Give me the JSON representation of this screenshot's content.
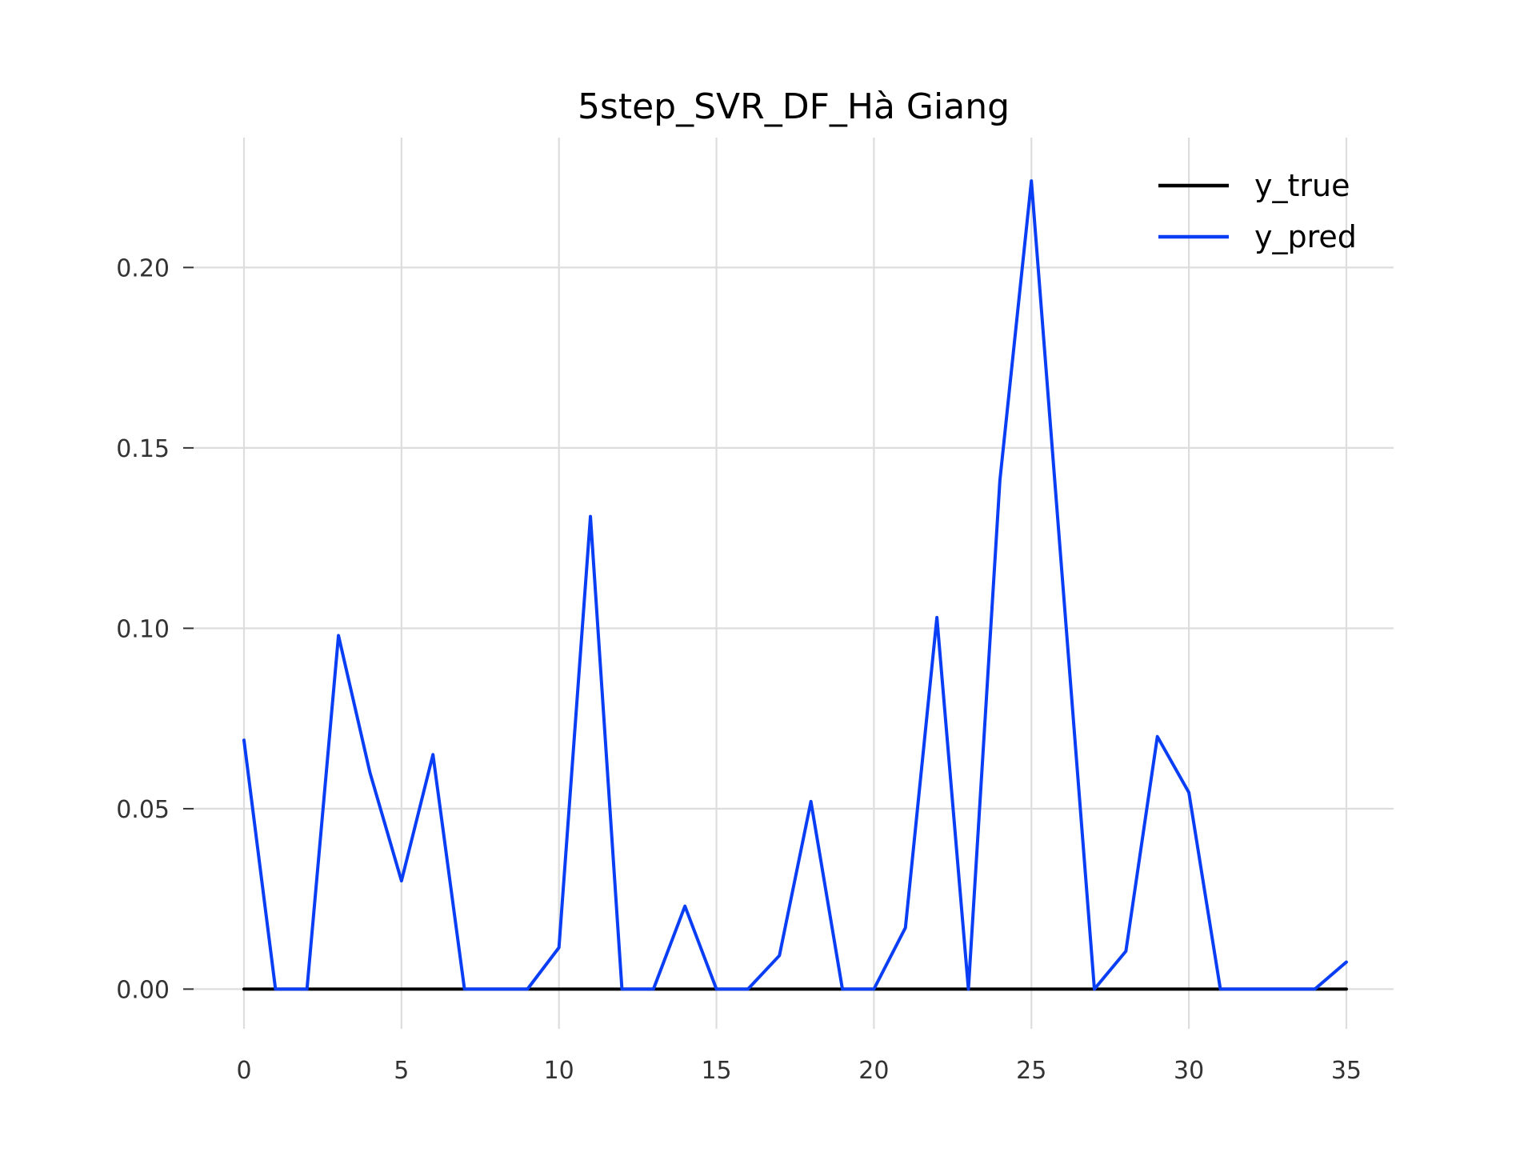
{
  "chart_data": {
    "type": "line",
    "title": "5step_SVR_DF_Hà Giang",
    "xlabel": "",
    "ylabel": "",
    "xlim": [
      -1.6,
      36.5
    ],
    "ylim": [
      -0.011,
      0.236
    ],
    "x_ticks": [
      0,
      5,
      10,
      15,
      20,
      25,
      30,
      35
    ],
    "y_ticks": [
      0.0,
      0.05,
      0.1,
      0.15,
      0.2
    ],
    "y_tick_labels": [
      "0.00",
      "0.05",
      "0.10",
      "0.15",
      "0.20"
    ],
    "grid": true,
    "legend_position": "upper right",
    "x": [
      0,
      1,
      2,
      3,
      4,
      5,
      6,
      7,
      8,
      9,
      10,
      11,
      12,
      13,
      14,
      15,
      16,
      17,
      18,
      19,
      20,
      21,
      22,
      23,
      24,
      25,
      26,
      27,
      28,
      29,
      30,
      31,
      32,
      33,
      34,
      35
    ],
    "series": [
      {
        "name": "y_true",
        "color": "#000000",
        "values": [
          0,
          0,
          0,
          0,
          0,
          0,
          0,
          0,
          0,
          0,
          0,
          0,
          0,
          0,
          0,
          0,
          0,
          0,
          0,
          0,
          0,
          0,
          0,
          0,
          0,
          0,
          0,
          0,
          0,
          0,
          0,
          0,
          0,
          0,
          0,
          0
        ]
      },
      {
        "name": "y_pred",
        "color": "#0a3ef5",
        "values": [
          0.069,
          0,
          0,
          0.098,
          0.06,
          0.03,
          0.065,
          0,
          0,
          0,
          0.0115,
          0.131,
          0,
          0,
          0.023,
          0,
          0,
          0.0093,
          0.052,
          0,
          0,
          0.017,
          0.103,
          0,
          0.141,
          0.224,
          0.112,
          0,
          0.0105,
          0.07,
          0.0545,
          0,
          0,
          0,
          0,
          0.0075
        ]
      }
    ]
  }
}
